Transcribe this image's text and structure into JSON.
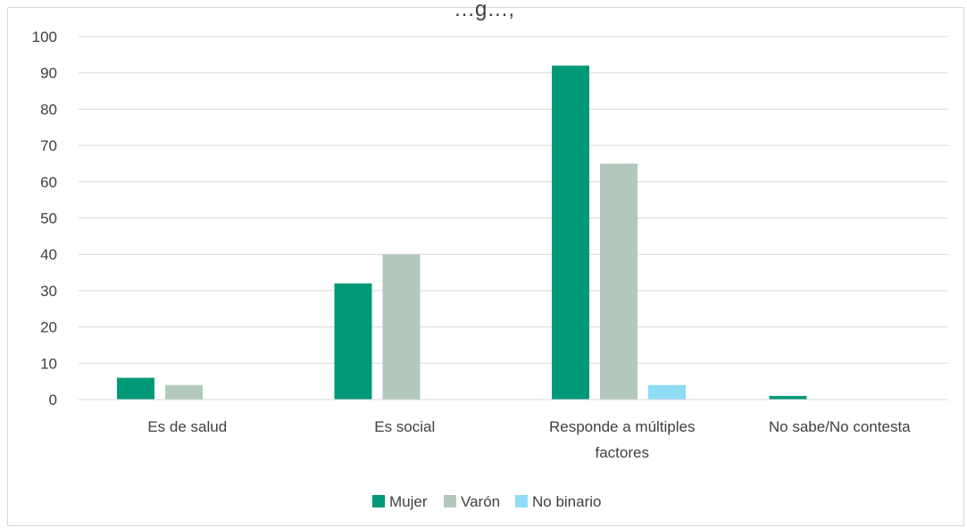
{
  "chart_data": {
    "type": "bar",
    "title": "…g…,",
    "categories": [
      "Es de salud",
      "Es social",
      "Responde a múltiples factores",
      "No sabe/No contesta"
    ],
    "category_lines": [
      [
        "Es de salud"
      ],
      [
        "Es social"
      ],
      [
        "Responde a múltiples",
        "factores"
      ],
      [
        "No sabe/No contesta"
      ]
    ],
    "series": [
      {
        "name": "Mujer",
        "color": "#009977",
        "values": [
          6,
          32,
          92,
          1
        ]
      },
      {
        "name": "Varón",
        "color": "#b3c8bd",
        "values": [
          4,
          40,
          65,
          0
        ]
      },
      {
        "name": "No binario",
        "color": "#8fdcf5",
        "values": [
          0,
          0,
          4,
          0
        ]
      }
    ],
    "ylim": [
      0,
      100
    ],
    "yticks": [
      0,
      10,
      20,
      30,
      40,
      50,
      60,
      70,
      80,
      90,
      100
    ],
    "grid": true,
    "legend_position": "bottom",
    "xlabel": "",
    "ylabel": ""
  }
}
